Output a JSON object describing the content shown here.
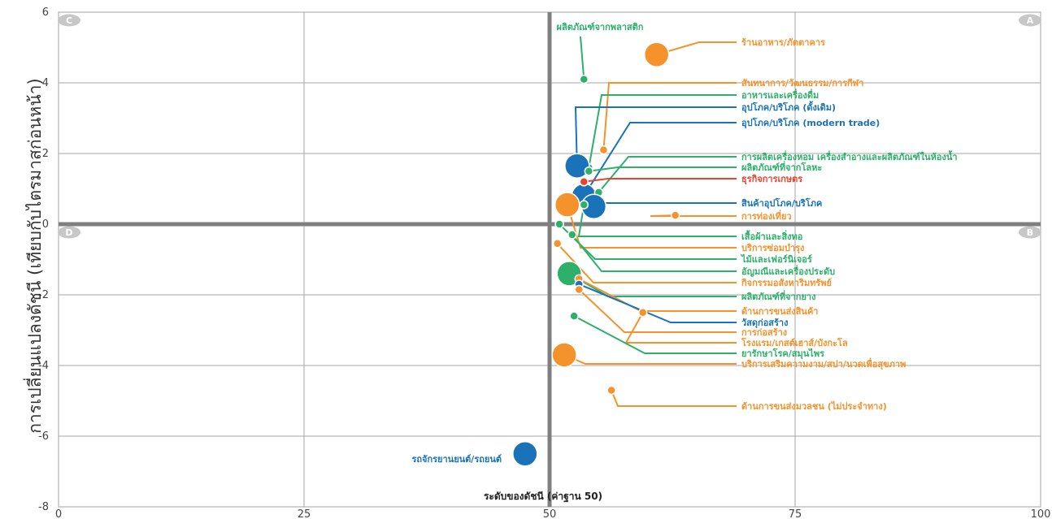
{
  "chart_data": {
    "type": "scatter",
    "title": "",
    "xlabel": "ระดับของดัชนี (ค่าฐาน 50)",
    "ylabel": "การเปลี่ยนแปลงดัชนี (เทียบกับไตรมาสก่อนหน้า)",
    "xlim": [
      0,
      100
    ],
    "ylim": [
      -8,
      6
    ],
    "x_ticks": [
      "0",
      "25",
      "50",
      "75",
      "100"
    ],
    "y_ticks": [
      "-8",
      "-6",
      "-4",
      "-2",
      "0",
      "2",
      "4",
      "6"
    ],
    "reference_lines": {
      "x": 50,
      "y": 0
    },
    "grid": true,
    "quadrants": [
      {
        "label": "A",
        "position": "top-right"
      },
      {
        "label": "B",
        "position": "bottom-right"
      },
      {
        "label": "C",
        "position": "top-left"
      },
      {
        "label": "D",
        "position": "bottom-left"
      }
    ],
    "colors": {
      "blue": "#1a73b8",
      "orange": "#f5922b",
      "green": "#2eb06b",
      "red": "#e8432e",
      "axis": "#7f7f7f",
      "grid": "#a6a6a6"
    },
    "points": [
      {
        "label": "ร้านอาหาร/ภัตตาคาร",
        "x": 60.9,
        "y": 4.8,
        "color": "orange",
        "size": "large"
      },
      {
        "label": "ผลิตภัณฑ์จากพลาสติก",
        "x": 53.5,
        "y": 4.1,
        "color": "green",
        "size": "small"
      },
      {
        "label": "สันทนาการ/วัฒนธรรม/การกีฬา",
        "x": 55.5,
        "y": 2.1,
        "color": "orange",
        "size": "small"
      },
      {
        "label": "อาหารและเครื่องดื่ม",
        "x": 54.0,
        "y": 1.6,
        "color": "green",
        "size": "small"
      },
      {
        "label": "อุปโภค/บริโภค (ดั้งเดิม)",
        "x": 52.8,
        "y": 1.65,
        "color": "blue",
        "size": "large"
      },
      {
        "label": "อุปโภค/บริโภค (modern trade)",
        "x": 53.5,
        "y": 0.8,
        "color": "blue",
        "size": "large"
      },
      {
        "label": "การผลิตเครื่องหอม เครื่องสำอางและผลิตภัณฑ์ในห้องน้ำ",
        "x": 55.0,
        "y": 0.9,
        "color": "green",
        "size": "small"
      },
      {
        "label": "ผลิตภัณฑ์ที่จากโลหะ",
        "x": 54.0,
        "y": 1.5,
        "color": "green",
        "size": "small"
      },
      {
        "label": "ธุรกิจการเกษตร",
        "x": 53.5,
        "y": 1.2,
        "color": "red",
        "size": "small"
      },
      {
        "label": "สินค้าอุปโภค/บริโภค",
        "x": 54.5,
        "y": 0.5,
        "color": "blue",
        "size": "large"
      },
      {
        "label": "การท่องเที่ยว",
        "x": 62.8,
        "y": 0.25,
        "color": "orange",
        "size": "small"
      },
      {
        "label": "เสื้อผ้าและสิ่งทอ",
        "x": 53.5,
        "y": 0.55,
        "color": "green",
        "size": "small"
      },
      {
        "label": "บริการซ่อมบำรุง",
        "x": 51.8,
        "y": 0.55,
        "color": "orange",
        "size": "large"
      },
      {
        "label": "ไม้และเฟอร์นิเจอร์",
        "x": 51.0,
        "y": 0.0,
        "color": "green",
        "size": "small"
      },
      {
        "label": "อัญมณีและเครื่องประดับ",
        "x": 52.3,
        "y": -0.3,
        "color": "green",
        "size": "small"
      },
      {
        "label": "กิจกรรมอสังหาริมทรัพย์",
        "x": 50.8,
        "y": -0.55,
        "color": "orange",
        "size": "small"
      },
      {
        "label": "ผลิตภัณฑ์ที่จากยาง",
        "x": 52.0,
        "y": -1.4,
        "color": "green",
        "size": "large"
      },
      {
        "label": "ด้านการขนส่งสินค้า",
        "x": 53.0,
        "y": -1.55,
        "color": "orange",
        "size": "small"
      },
      {
        "label": "วัสดุก่อสร้าง",
        "x": 53.0,
        "y": -1.7,
        "color": "blue",
        "size": "small"
      },
      {
        "label": "การก่อสร้าง",
        "x": 53.0,
        "y": -1.85,
        "color": "orange",
        "size": "small"
      },
      {
        "label": "โรงแรม/เกสต์เฮาส์/บังกะโล",
        "x": 59.5,
        "y": -2.5,
        "color": "orange",
        "size": "small"
      },
      {
        "label": "ยารักษาโรค/สมุนไพร",
        "x": 52.5,
        "y": -2.6,
        "color": "green",
        "size": "small"
      },
      {
        "label": "บริการเสริมความงาม/สปา/นวดเพื่อสุขภาพ",
        "x": 51.5,
        "y": -3.7,
        "color": "orange",
        "size": "large"
      },
      {
        "label": "ด้านการขนส่งมวลชน (ไม่ประจำทาง)",
        "x": 56.3,
        "y": -4.7,
        "color": "orange",
        "size": "small"
      },
      {
        "label": "รถจักรยานยนต์/รถยนต์",
        "x": 47.5,
        "y": -6.5,
        "color": "blue",
        "size": "large"
      }
    ]
  }
}
